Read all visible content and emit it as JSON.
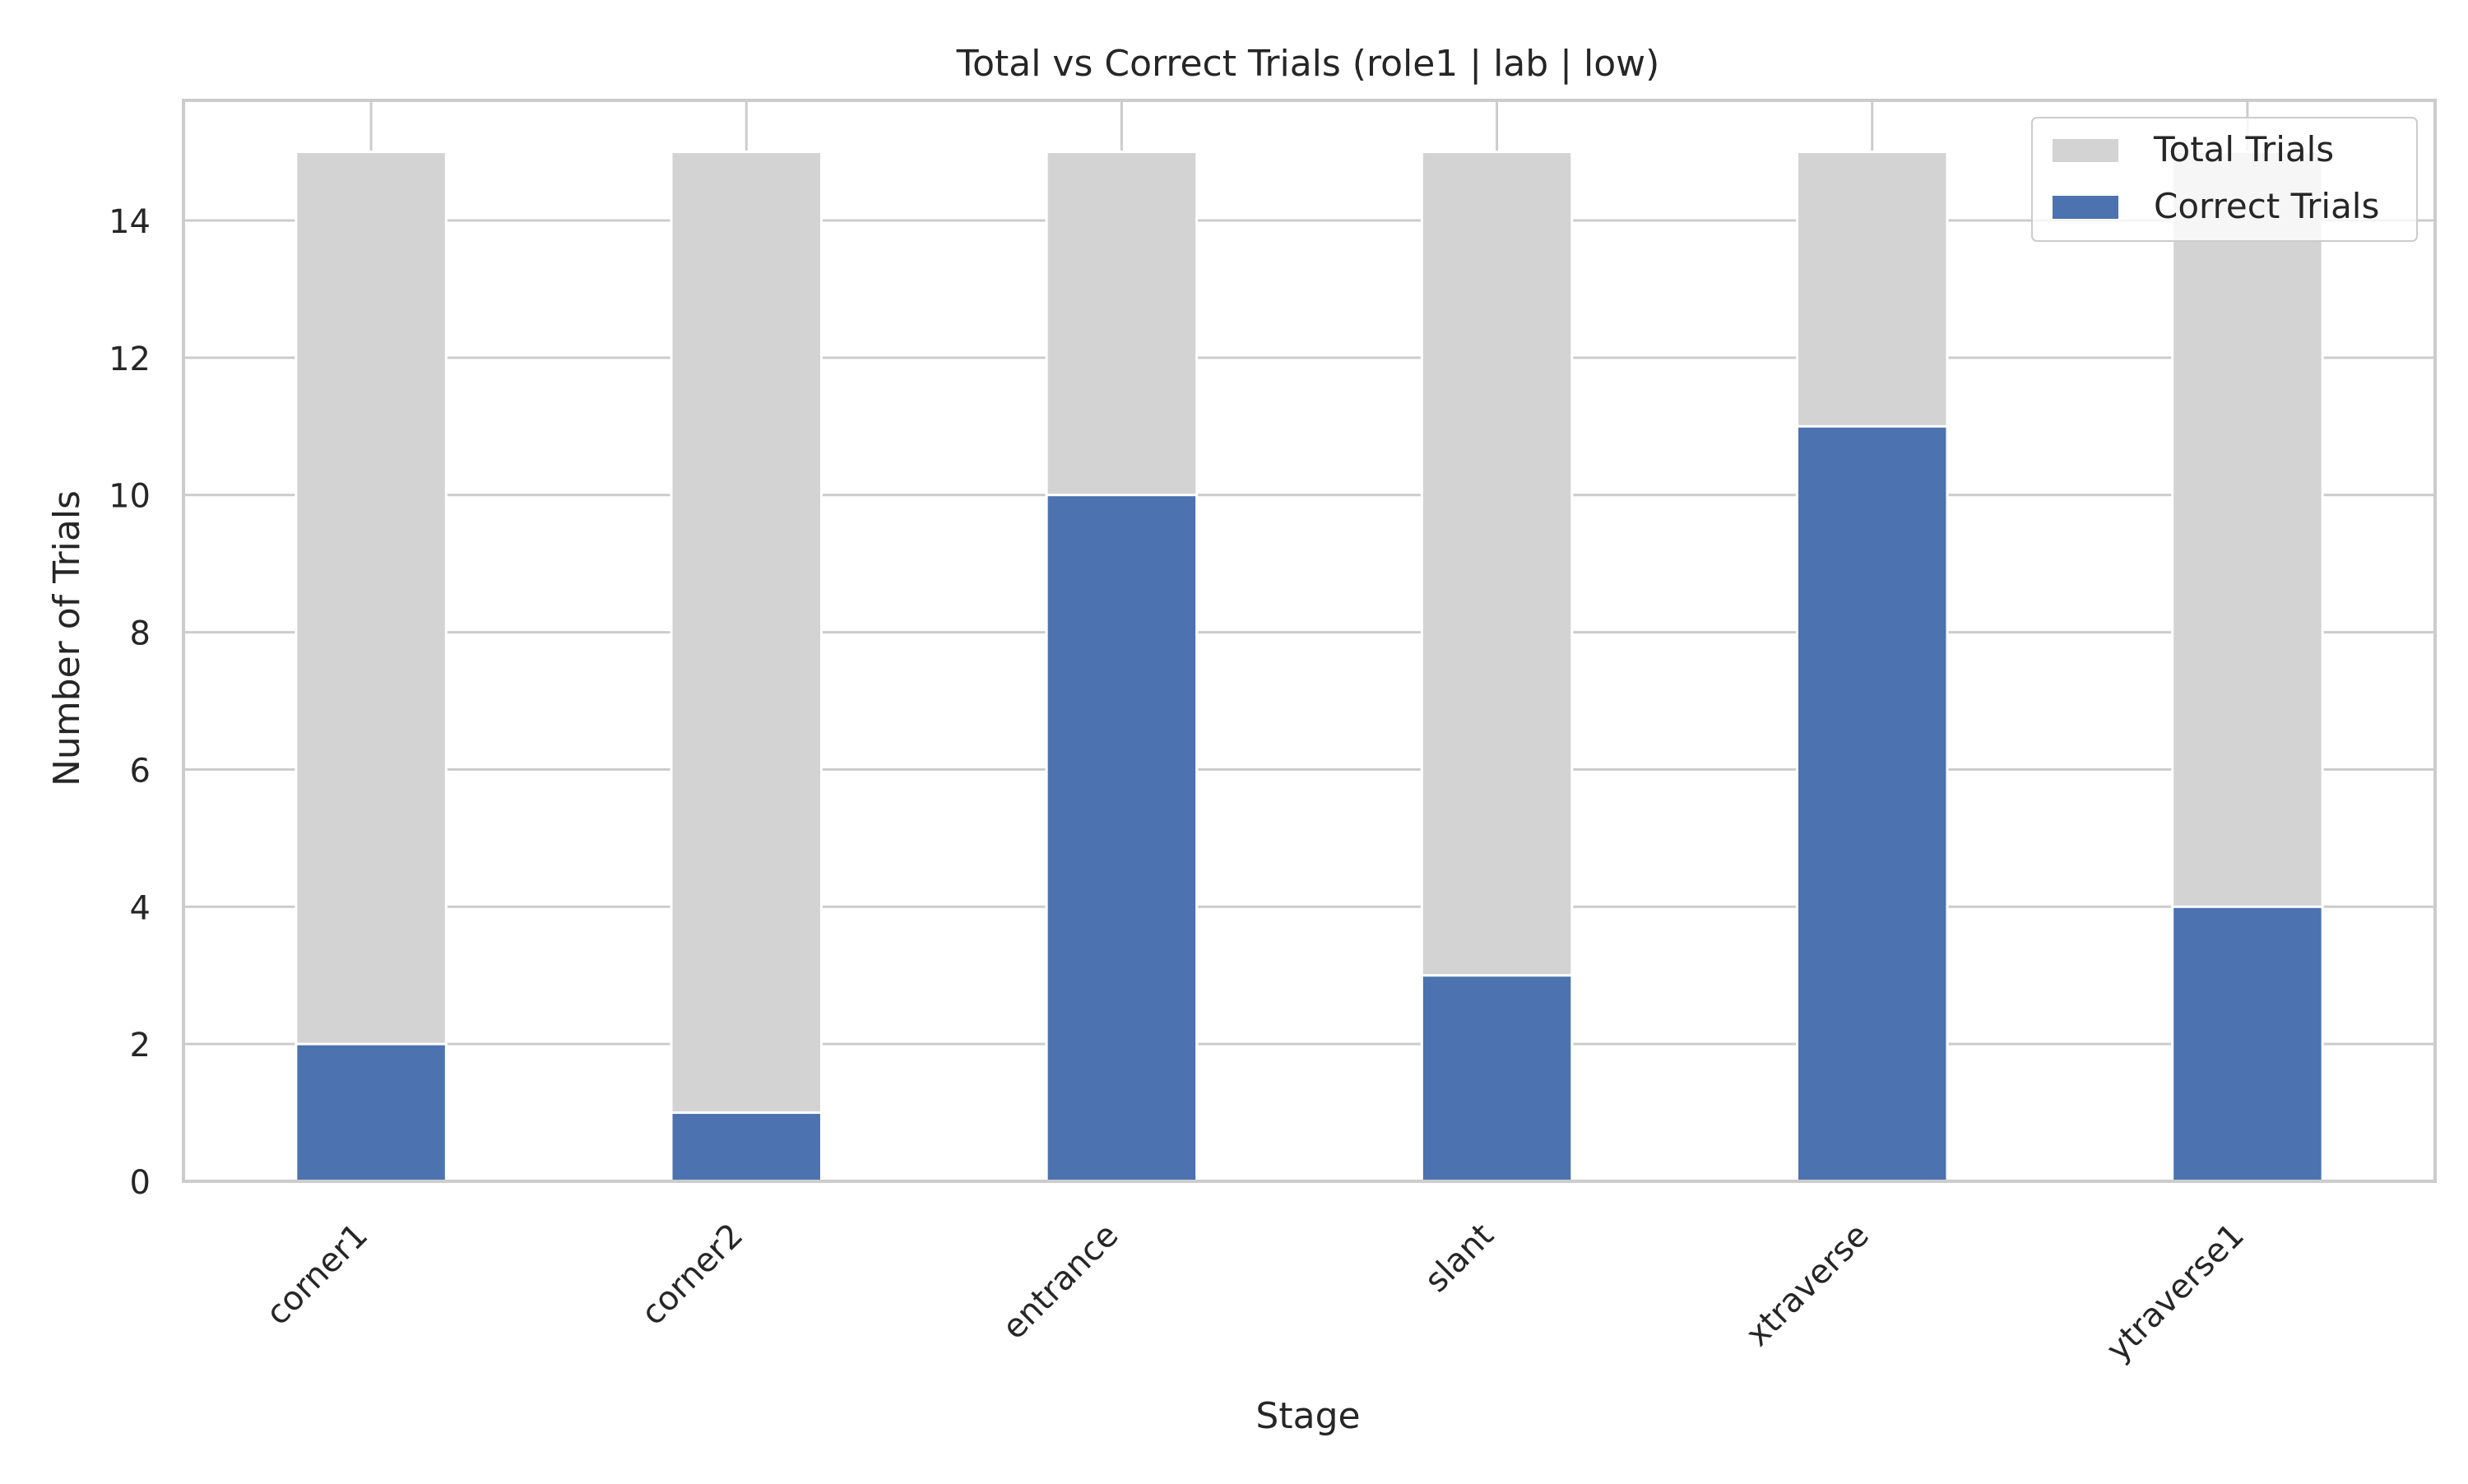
{
  "chart_data": {
    "type": "bar",
    "title": "Total vs Correct Trials (role1 | lab | low)",
    "xlabel": "Stage",
    "ylabel": "Number of Trials",
    "categories": [
      "corner1",
      "corner2",
      "entrance",
      "slant",
      "xtraverse",
      "ytraverse1"
    ],
    "series": [
      {
        "name": "Total Trials",
        "values": [
          15,
          15,
          15,
          15,
          15,
          15
        ],
        "color": "#d3d3d3"
      },
      {
        "name": "Correct Trials",
        "values": [
          2,
          1,
          10,
          3,
          11,
          4
        ],
        "color": "#4c72b0"
      }
    ],
    "ylim": [
      0,
      15.75
    ],
    "yticks": [
      0,
      2,
      4,
      6,
      8,
      10,
      12,
      14
    ],
    "grid": true,
    "legend": "top-right",
    "xtick_rotation": "45 degrees"
  }
}
